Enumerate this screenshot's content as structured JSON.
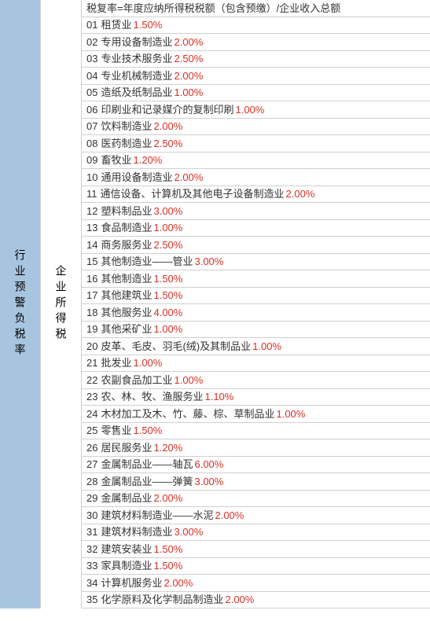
{
  "leftLabel": "行业预警负税率",
  "midLabel": "企业所得税",
  "headerRow": "税复率=年度应纳所得税税额（包含预缴）/企业收入总额",
  "rows": [
    {
      "idx": "01",
      "name": "租赁业",
      "pct": "1.50%"
    },
    {
      "idx": "02",
      "name": "专用设备制造业",
      "pct": "2.00%"
    },
    {
      "idx": "03",
      "name": "专业技术服务业",
      "pct": "2.50%"
    },
    {
      "idx": "04",
      "name": "专业机械制造业",
      "pct": "2.00%"
    },
    {
      "idx": "05",
      "name": "造纸及纸制品业",
      "pct": "1.00%"
    },
    {
      "idx": "06",
      "name": "印刷业和记录媒介的复制印刷",
      "pct": "1.00%"
    },
    {
      "idx": "07",
      "name": "饮料制造业",
      "pct": "2.00%"
    },
    {
      "idx": "08",
      "name": "医药制造业",
      "pct": "2.50%"
    },
    {
      "idx": "09",
      "name": "畜牧业",
      "pct": "1.20%"
    },
    {
      "idx": "10",
      "name": "通用设备制造业",
      "pct": "2.00%"
    },
    {
      "idx": "11",
      "name": "通信设备、计算机及其他电子设备制造业",
      "pct": "2.00%"
    },
    {
      "idx": "12",
      "name": "塑料制品业",
      "pct": "3.00%"
    },
    {
      "idx": "13",
      "name": "食品制造业",
      "pct": "1.00%"
    },
    {
      "idx": "14",
      "name": "商务服务业",
      "pct": "2.50%"
    },
    {
      "idx": "15",
      "name": "其他制造业——管业",
      "pct": "3.00%"
    },
    {
      "idx": "16",
      "name": "其他制造业",
      "pct": "1.50%"
    },
    {
      "idx": "17",
      "name": "其他建筑业",
      "pct": "1.50%"
    },
    {
      "idx": "18",
      "name": "其他服务业",
      "pct": "4.00%"
    },
    {
      "idx": "19",
      "name": "其他采矿业",
      "pct": "1.00%"
    },
    {
      "idx": "20",
      "name": "皮革、毛皮、羽毛(绒)及其制品业",
      "pct": "1.00%"
    },
    {
      "idx": "21",
      "name": "批发业",
      "pct": "1.00%"
    },
    {
      "idx": "22",
      "name": "农副食品加工业",
      "pct": "1.00%"
    },
    {
      "idx": "23",
      "name": "农、林、牧、渔服务业",
      "pct": "1.10%"
    },
    {
      "idx": "24",
      "name": "木材加工及木、竹、藤、棕、草制品业",
      "pct": "1.00%"
    },
    {
      "idx": "25",
      "name": "零售业",
      "pct": "1.50%"
    },
    {
      "idx": "26",
      "name": "居民服务业",
      "pct": "1.20%"
    },
    {
      "idx": "27",
      "name": "金属制品业——轴瓦",
      "pct": "6.00%"
    },
    {
      "idx": "28",
      "name": "金属制品业——弹簧",
      "pct": "3.00%"
    },
    {
      "idx": "29",
      "name": "金属制品业",
      "pct": "2.00%",
      "nospace": true
    },
    {
      "idx": "30",
      "name": "建筑材料制造业——水泥",
      "pct": "2.00%"
    },
    {
      "idx": "31",
      "name": "建筑材料制造业",
      "pct": "3.00%"
    },
    {
      "idx": "32",
      "name": "建筑安装业",
      "pct": "1.50%"
    },
    {
      "idx": "33",
      "name": "家具制造业",
      "pct": "1.50%"
    },
    {
      "idx": "34",
      "name": "计算机服务业",
      "pct": "2.00%"
    },
    {
      "idx": "35",
      "name": "化学原料及化学制品制造业",
      "pct": "2.00%"
    }
  ],
  "colors": {
    "leftBg": "#a8c5e0",
    "border": "#d0d0d0",
    "pct": "#d93025"
  }
}
